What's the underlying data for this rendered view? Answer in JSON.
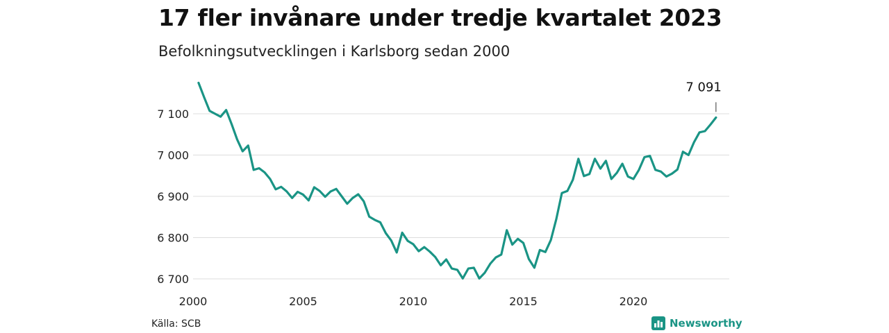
{
  "header": {
    "title": "17 fler invånare under tredje kvartalet 2023",
    "subtitle": "Befolkningsutvecklingen i Karlsborg sedan 2000"
  },
  "footer": {
    "source": "Källa: SCB",
    "brand": "Newsworthy"
  },
  "colors": {
    "line": "#1a9485",
    "grid": "#dddddd",
    "brand": "#1a9485"
  },
  "chart_data": {
    "type": "line",
    "title": "17 fler invånare under tredje kvartalet 2023",
    "subtitle": "Befolkningsutvecklingen i Karlsborg sedan 2000",
    "xlabel": "",
    "ylabel": "",
    "xlim": [
      2000,
      2024
    ],
    "ylim": [
      6690,
      7180
    ],
    "x_ticks": [
      2000,
      2005,
      2010,
      2015,
      2020
    ],
    "y_ticks": [
      6700,
      6800,
      6900,
      7000,
      7100
    ],
    "y_tick_labels": [
      "6 700",
      "6 800",
      "6 900",
      "7 000",
      "7 100"
    ],
    "grid": true,
    "end_label": "7 091",
    "series": [
      {
        "x": [
          2000.25,
          2000.5,
          2000.75,
          2001.0,
          2001.25,
          2001.5,
          2001.75,
          2002.0,
          2002.25,
          2002.5,
          2002.75,
          2003.0,
          2003.25,
          2003.5,
          2003.75,
          2004.0,
          2004.25,
          2004.5,
          2004.75,
          2005.0,
          2005.25,
          2005.5,
          2005.75,
          2006.0,
          2006.25,
          2006.5,
          2006.75,
          2007.0,
          2007.25,
          2007.5,
          2007.75,
          2008.0,
          2008.25,
          2008.5,
          2008.75,
          2009.0,
          2009.25,
          2009.5,
          2009.75,
          2010.0,
          2010.25,
          2010.5,
          2010.75,
          2011.0,
          2011.25,
          2011.5,
          2011.75,
          2012.0,
          2012.25,
          2012.5,
          2012.75,
          2013.0,
          2013.25,
          2013.5,
          2013.75,
          2014.0,
          2014.25,
          2014.5,
          2014.75,
          2015.0,
          2015.25,
          2015.5,
          2015.75,
          2016.0,
          2016.25,
          2016.5,
          2016.75,
          2017.0,
          2017.25,
          2017.5,
          2017.75,
          2018.0,
          2018.25,
          2018.5,
          2018.75,
          2019.0,
          2019.25,
          2019.5,
          2019.75,
          2020.0,
          2020.25,
          2020.5,
          2020.75,
          2021.0,
          2021.25,
          2021.5,
          2021.75,
          2022.0,
          2022.25,
          2022.5,
          2022.75,
          2023.0,
          2023.25,
          2023.5,
          2023.75
        ],
        "y": [
          7175,
          7140,
          7107,
          7100,
          7093,
          7109,
          7075,
          7038,
          7009,
          7023,
          6964,
          6968,
          6958,
          6942,
          6917,
          6923,
          6912,
          6896,
          6911,
          6904,
          6890,
          6922,
          6913,
          6899,
          6912,
          6918,
          6900,
          6882,
          6896,
          6905,
          6888,
          6851,
          6843,
          6837,
          6811,
          6793,
          6764,
          6812,
          6792,
          6784,
          6767,
          6777,
          6766,
          6753,
          6733,
          6747,
          6725,
          6722,
          6701,
          6725,
          6727,
          6701,
          6715,
          6737,
          6752,
          6759,
          6818,
          6783,
          6797,
          6787,
          6748,
          6727,
          6770,
          6765,
          6794,
          6845,
          6908,
          6913,
          6940,
          6991,
          6949,
          6954,
          6991,
          6967,
          6986,
          6942,
          6957,
          6979,
          6948,
          6942,
          6964,
          6995,
          6998,
          6964,
          6960,
          6948,
          6955,
          6965,
          7008,
          7000,
          7031,
          7055,
          7058,
          7074,
          7091
        ]
      }
    ]
  }
}
